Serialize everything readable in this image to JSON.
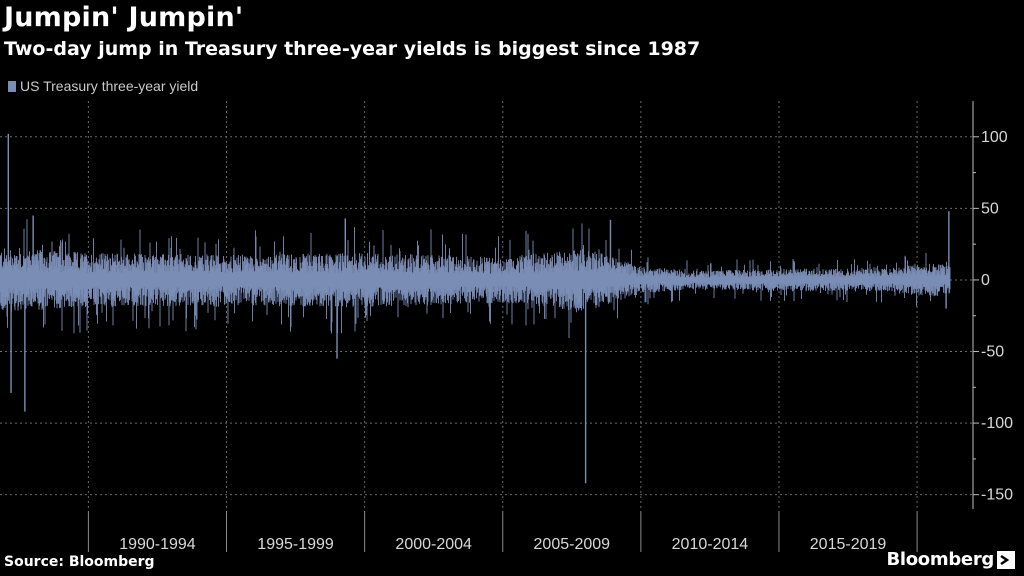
{
  "header": {
    "title": "Jumpin' Jumpin'",
    "subtitle": "Two-day jump in Treasury three-year yields is biggest since 1987"
  },
  "footer": {
    "source": "Source: Bloomberg",
    "brand": "Bloomberg"
  },
  "colors": {
    "series": "#7a8db5",
    "background": "#000000",
    "grid": "#6a6a6a"
  },
  "chart_data": {
    "type": "bar",
    "series": [
      {
        "name": "US Treasury three-year yield",
        "noise_amplitude_by_year": {
          "1987": 14,
          "1990": 12,
          "1995": 11,
          "2000": 12,
          "2005": 10,
          "2008": 14,
          "2010": 6,
          "2012": 4,
          "2015": 5,
          "2019": 5,
          "2020": 7
        },
        "notable_points": [
          {
            "x": 1987.1,
            "y": 102
          },
          {
            "x": 1987.2,
            "y": -79
          },
          {
            "x": 1987.7,
            "y": -92
          },
          {
            "x": 1988.0,
            "y": 45
          },
          {
            "x": 1999.0,
            "y": -55
          },
          {
            "x": 1999.3,
            "y": 43
          },
          {
            "x": 2008.0,
            "y": -142
          },
          {
            "x": 2008.9,
            "y": 42
          },
          {
            "x": 2021.15,
            "y": 48
          },
          {
            "x": 2021.05,
            "y": -20
          }
        ]
      }
    ],
    "x_categories": [
      "1990-1994",
      "1995-1999",
      "2000-2004",
      "2005-2009",
      "2010-2014",
      "2015-2019"
    ],
    "x_range": [
      1986.8,
      2021.3
    ],
    "ylim": [
      -160,
      125
    ],
    "yticks": [
      100,
      50,
      0,
      -50,
      -100,
      -150
    ],
    "grid": true,
    "y_axis_position": "right",
    "legend_position": "top-left"
  }
}
